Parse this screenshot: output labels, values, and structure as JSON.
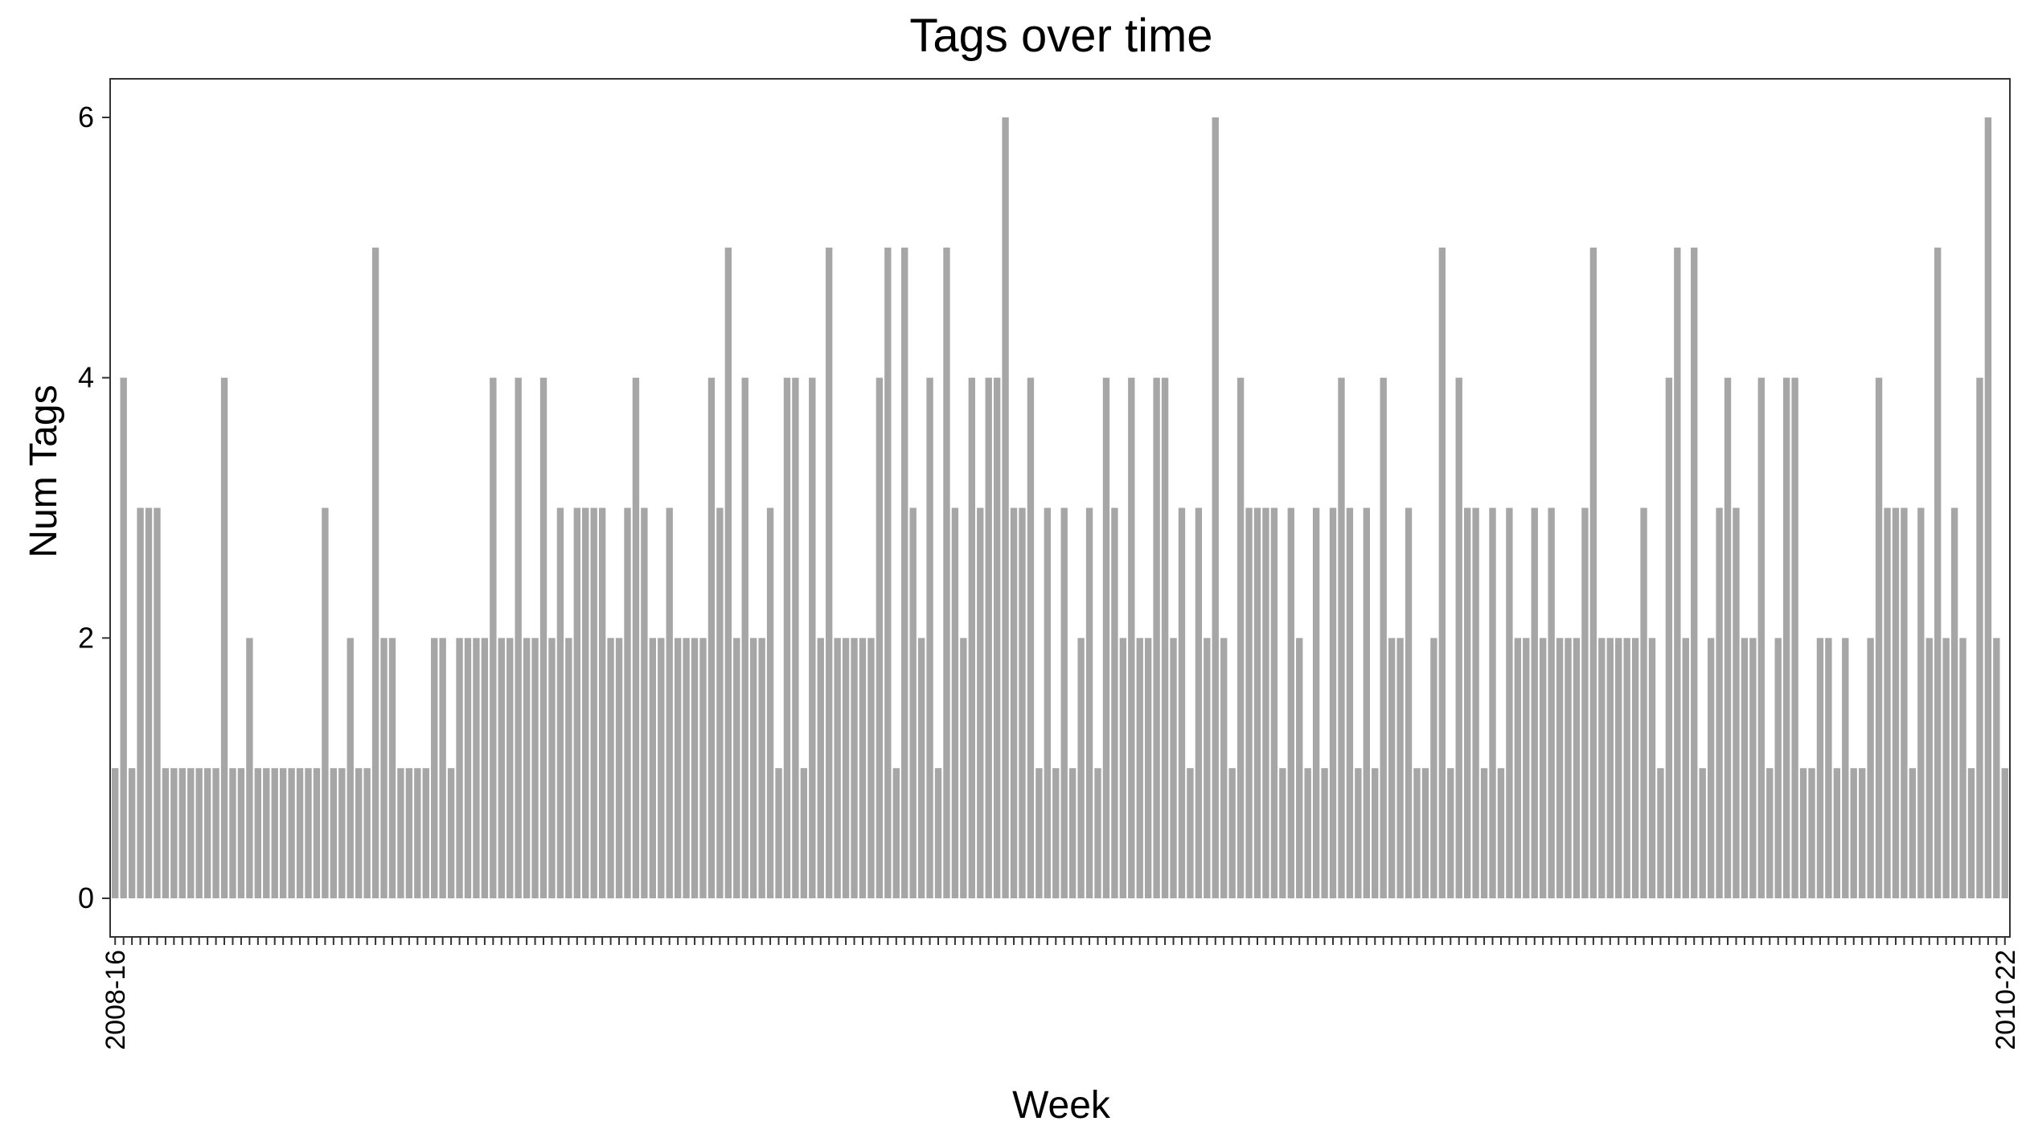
{
  "chart_data": {
    "type": "bar",
    "title": "Tags over time",
    "xlabel": "Week",
    "ylabel": "Num Tags",
    "ylim": [
      0,
      6.3
    ],
    "yticks": [
      0,
      2,
      4,
      6
    ],
    "grid": false,
    "legend": "none",
    "first_category": "2008-16",
    "last_category": "2010-22",
    "bar_color": "#a6a6a6",
    "values": [
      1,
      4,
      1,
      3,
      3,
      3,
      1,
      1,
      1,
      1,
      1,
      1,
      1,
      4,
      1,
      1,
      2,
      1,
      1,
      1,
      1,
      1,
      1,
      1,
      1,
      3,
      1,
      1,
      2,
      1,
      1,
      5,
      2,
      2,
      1,
      1,
      1,
      1,
      2,
      2,
      1,
      2,
      2,
      2,
      2,
      4,
      2,
      2,
      4,
      2,
      2,
      4,
      2,
      3,
      2,
      3,
      3,
      3,
      3,
      2,
      2,
      3,
      4,
      3,
      2,
      2,
      3,
      2,
      2,
      2,
      2,
      4,
      3,
      5,
      2,
      4,
      2,
      2,
      3,
      1,
      4,
      4,
      1,
      4,
      2,
      5,
      2,
      2,
      2,
      2,
      2,
      4,
      5,
      1,
      5,
      3,
      2,
      4,
      1,
      5,
      3,
      2,
      4,
      3,
      4,
      4,
      6,
      3,
      3,
      4,
      1,
      3,
      1,
      3,
      1,
      2,
      3,
      1,
      4,
      3,
      2,
      4,
      2,
      2,
      4,
      4,
      2,
      3,
      1,
      3,
      2,
      6,
      2,
      1,
      4,
      3,
      3,
      3,
      3,
      1,
      3,
      2,
      1,
      3,
      1,
      3,
      4,
      3,
      1,
      3,
      1,
      4,
      2,
      2,
      3,
      1,
      1,
      2,
      5,
      1,
      4,
      3,
      3,
      1,
      3,
      1,
      3,
      2,
      2,
      3,
      2,
      3,
      2,
      2,
      2,
      3,
      5,
      2,
      2,
      2,
      2,
      2,
      3,
      2,
      1,
      4,
      5,
      2,
      5,
      1,
      2,
      3,
      4,
      3,
      2,
      2,
      4,
      1,
      2,
      4,
      4,
      1,
      1,
      2,
      2,
      1,
      2,
      1,
      1,
      2,
      4,
      3,
      3,
      3,
      1,
      3,
      2,
      5,
      2,
      3,
      2,
      1,
      4,
      6,
      2,
      1
    ]
  }
}
